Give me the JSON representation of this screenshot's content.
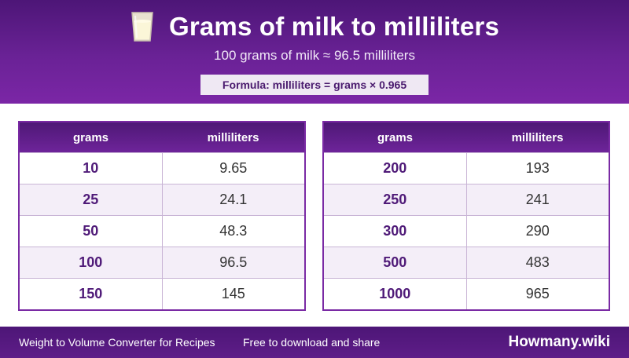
{
  "header": {
    "icon": "milk-glass-icon",
    "title": "Grams of milk to milliliters",
    "subtitle": "100 grams of milk ≈ 96.5 milliliters",
    "formula": "Formula: milliliters = grams × 0.965"
  },
  "tables": {
    "left": {
      "headers": [
        "grams",
        "milliliters"
      ],
      "rows": [
        [
          "10",
          "9.65"
        ],
        [
          "25",
          "24.1"
        ],
        [
          "50",
          "48.3"
        ],
        [
          "100",
          "96.5"
        ],
        [
          "150",
          "145"
        ]
      ]
    },
    "right": {
      "headers": [
        "grams",
        "milliliters"
      ],
      "rows": [
        [
          "200",
          "193"
        ],
        [
          "250",
          "241"
        ],
        [
          "300",
          "290"
        ],
        [
          "500",
          "483"
        ],
        [
          "1000",
          "965"
        ]
      ]
    }
  },
  "footer": {
    "left_text": "Weight to Volume Converter for Recipes",
    "mid_text": "Free to download and share",
    "brand": "Howmany.wiki"
  },
  "colors": {
    "header_purple": "#6a2296",
    "accent_text": "#4f1a78",
    "alt_row": "#f4eef8"
  }
}
